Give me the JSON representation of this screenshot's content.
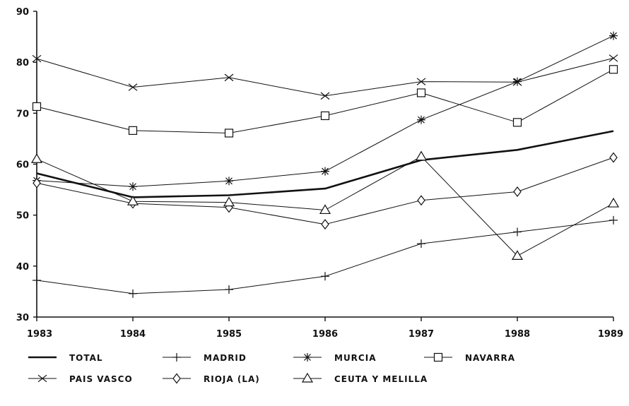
{
  "chart_data": {
    "type": "line",
    "title": "",
    "xlabel": "",
    "ylabel": "",
    "x": [
      "1983",
      "1984",
      "1985",
      "1986",
      "1987",
      "1988",
      "1989"
    ],
    "ylim": [
      30,
      90
    ],
    "yticks": [
      "30",
      "40",
      "50",
      "60",
      "70",
      "80",
      "90"
    ],
    "grid": false,
    "legend_position": "bottom",
    "series": [
      {
        "name": "TOTAL",
        "marker": "none",
        "bold": true,
        "values": [
          58.2,
          53.5,
          53.9,
          55.2,
          60.8,
          62.8,
          66.5
        ]
      },
      {
        "name": "MADRID",
        "marker": "plus",
        "values": [
          37.2,
          34.6,
          35.4,
          38.0,
          44.4,
          46.7,
          49.0
        ]
      },
      {
        "name": "MURCIA",
        "marker": "asterisk",
        "values": [
          56.8,
          55.6,
          56.7,
          58.6,
          68.7,
          76.2,
          85.2
        ]
      },
      {
        "name": "NAVARRA",
        "marker": "square",
        "values": [
          71.3,
          66.6,
          66.1,
          69.5,
          74.0,
          68.2,
          78.6
        ]
      },
      {
        "name": "PAIS VASCO",
        "marker": "x",
        "values": [
          80.7,
          75.1,
          77.0,
          73.4,
          76.2,
          76.1,
          80.8
        ]
      },
      {
        "name": "RIOJA (LA)",
        "marker": "diamond",
        "values": [
          56.3,
          52.3,
          51.5,
          48.2,
          52.9,
          54.6,
          61.3
        ]
      },
      {
        "name": "CEUTA Y MELILLA",
        "marker": "triangle",
        "values": [
          61.0,
          52.7,
          52.5,
          51.0,
          61.5,
          42.0,
          52.3
        ]
      }
    ]
  }
}
